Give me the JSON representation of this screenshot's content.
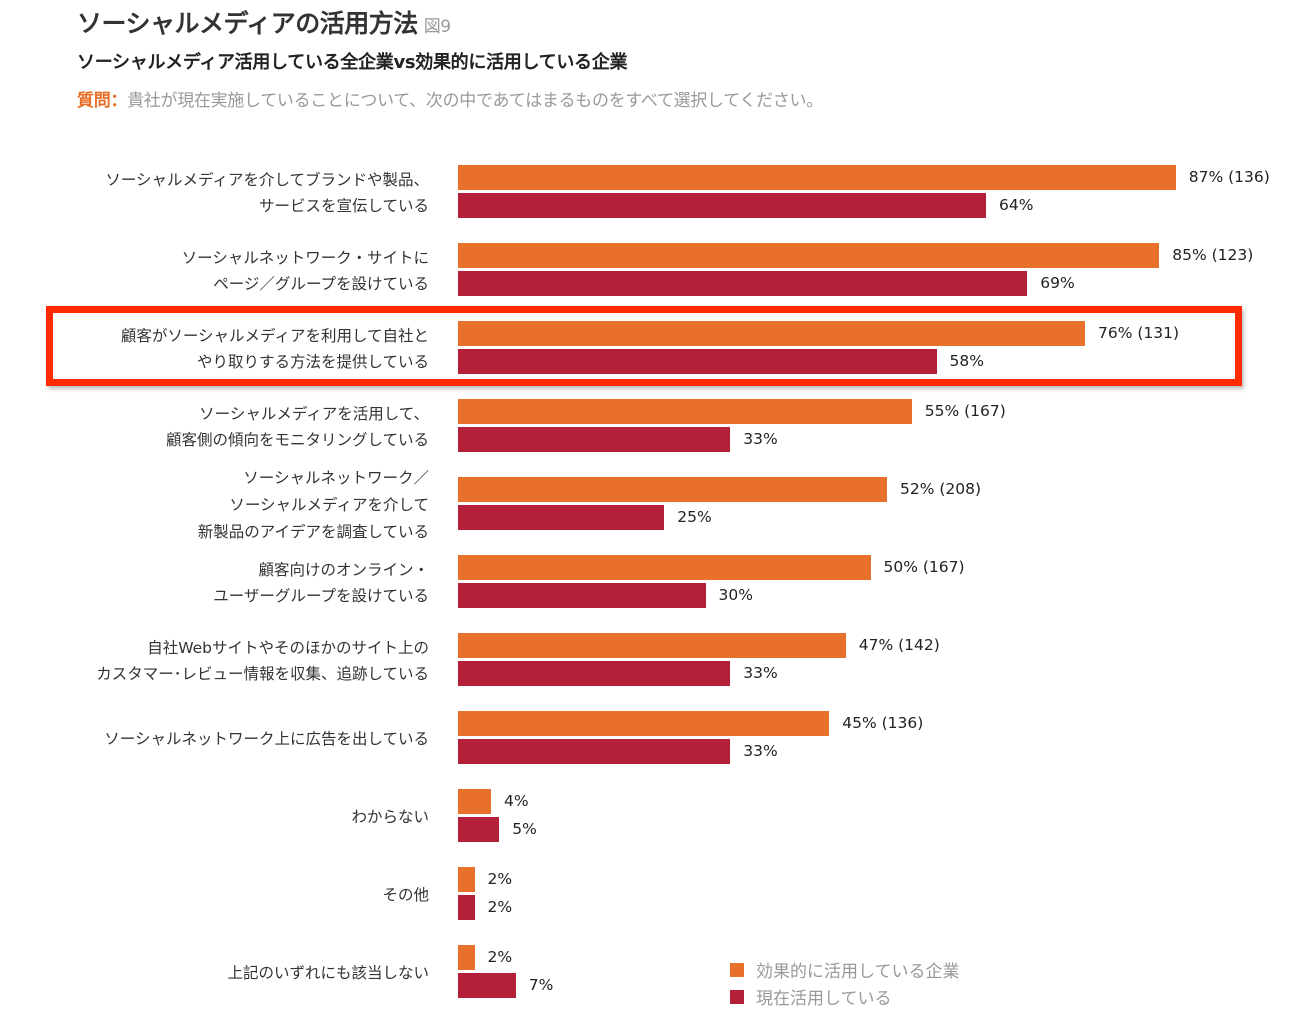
{
  "header": {
    "title": "ソーシャルメディアの活用方法",
    "figure_label": "図9",
    "subtitle": "ソーシャルメディア活用している全企業vs効果的に活用している企業",
    "question_label": "質問：",
    "question_text": "貴社が現在実施していることについて、次の中であてはまるものをすべて選択してください。"
  },
  "colors": {
    "effective": "#e8702a",
    "current": "#b41f3a",
    "highlight": "#ff2a00"
  },
  "chart_data": {
    "type": "bar",
    "orientation": "horizontal",
    "title": "ソーシャルメディアの活用方法",
    "categories": [
      [
        "ソーシャルメディアを介してブランドや製品、",
        "サービスを宣伝している"
      ],
      [
        "ソーシャルネットワーク・サイトに",
        "ページ／グループを設けている"
      ],
      [
        "顧客がソーシャルメディアを利用して自社と",
        "やり取りする方法を提供している"
      ],
      [
        "ソーシャルメディアを活用して、",
        "顧客側の傾向をモニタリングしている"
      ],
      [
        "ソーシャルネットワーク／",
        "ソーシャルメディアを介して",
        "新製品のアイデアを調査している"
      ],
      [
        "顧客向けのオンライン・",
        "ユーザーグループを設けている"
      ],
      [
        "自社Webサイトやそのほかのサイト上の",
        "カスタマー･レビュー情報を収集、追跡している"
      ],
      [
        "ソーシャルネットワーク上に広告を出している"
      ],
      [
        "わからない"
      ],
      [
        "その他"
      ],
      [
        "上記のいずれにも該当しない"
      ]
    ],
    "series": [
      {
        "name": "効果的に活用している企業",
        "values": [
          87,
          85,
          76,
          55,
          52,
          50,
          47,
          45,
          4,
          2,
          2
        ],
        "labels": [
          "87% (136)",
          "85% (123)",
          "76% (131)",
          "55% (167)",
          "52% (208)",
          "50% (167)",
          "47% (142)",
          "45% (136)",
          "4%",
          "2%",
          "2%"
        ]
      },
      {
        "name": "現在活用している",
        "values": [
          64,
          69,
          58,
          33,
          25,
          30,
          33,
          33,
          5,
          2,
          7
        ],
        "labels": [
          "64%",
          "69%",
          "58%",
          "33%",
          "25%",
          "30%",
          "33%",
          "33%",
          "5%",
          "2%",
          "7%"
        ]
      }
    ],
    "unit": "%",
    "highlighted_category_index": 2,
    "legend_position": "bottom-right",
    "grid": false
  }
}
